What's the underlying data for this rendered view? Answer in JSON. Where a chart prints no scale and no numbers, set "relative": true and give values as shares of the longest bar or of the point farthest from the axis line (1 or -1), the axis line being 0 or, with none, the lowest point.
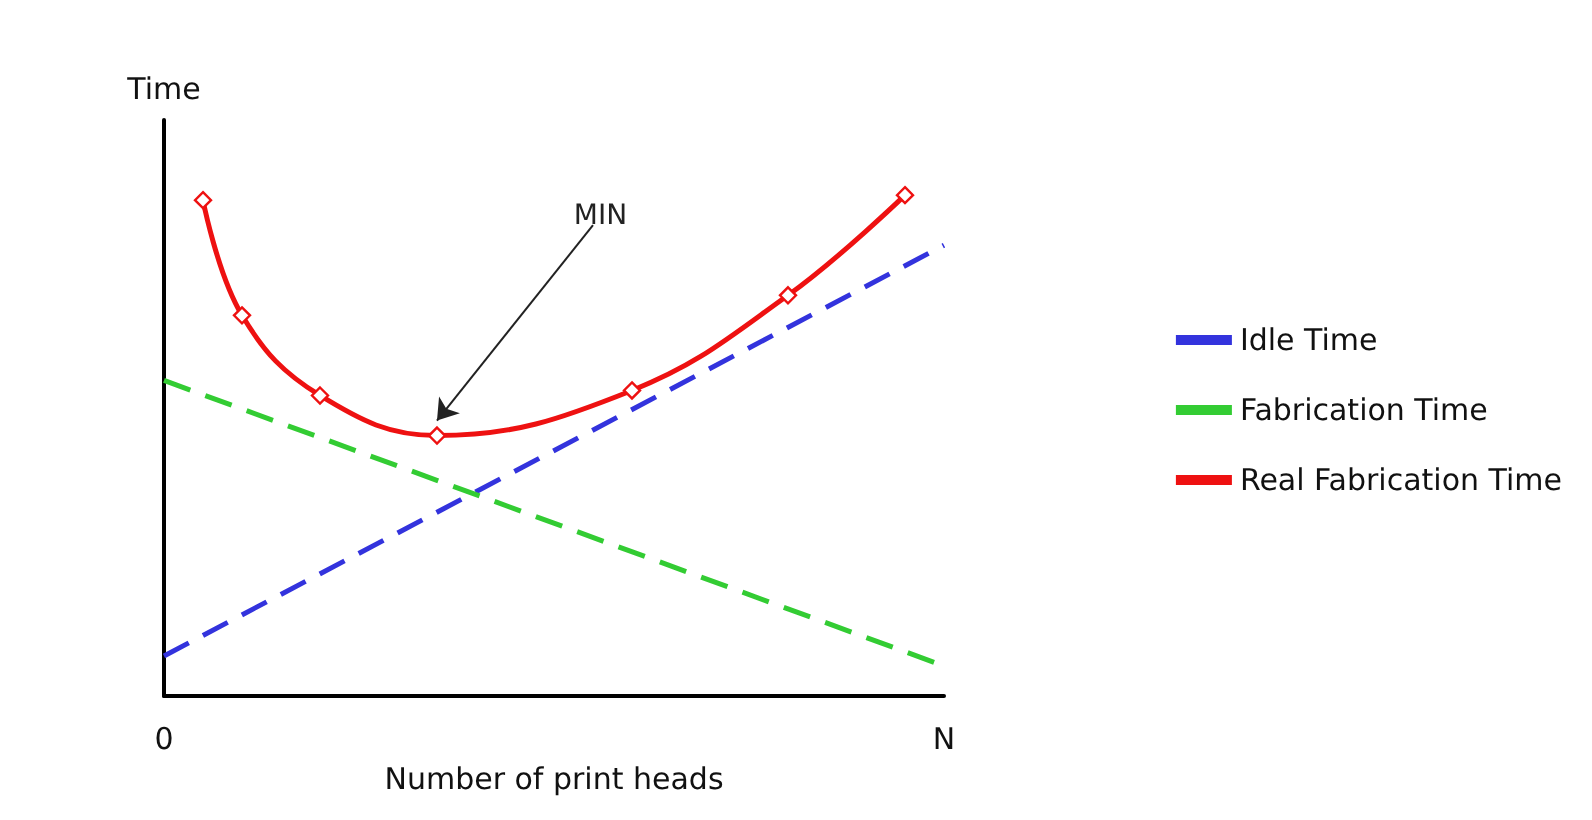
{
  "chart_data": {
    "type": "line",
    "relative": true,
    "xlabel": "Number of print heads",
    "ylabel": "Time",
    "categories": [
      "0",
      null,
      null,
      null,
      null,
      null,
      null,
      null,
      null,
      null,
      null,
      null,
      null,
      null,
      null,
      null,
      null,
      null,
      null,
      null,
      "N"
    ],
    "tick_labels": "x",
    "grid": false,
    "legend": "right",
    "annotations": [
      "MIN"
    ],
    "series": [
      {
        "name": "Idle Time",
        "color": "#3333dd",
        "line_style": "dashed",
        "marker": "none",
        "values": [
          0.08,
          null,
          null,
          null,
          null,
          null,
          null,
          null,
          null,
          null,
          null,
          null,
          null,
          null,
          null,
          null,
          null,
          null,
          null,
          null,
          0.9
        ]
      },
      {
        "name": "Fabrication Time",
        "color": "#33cc33",
        "line_style": "dashed",
        "marker": "none",
        "values": [
          0.63,
          null,
          null,
          null,
          null,
          null,
          null,
          null,
          null,
          null,
          null,
          null,
          null,
          null,
          null,
          null,
          null,
          null,
          null,
          null,
          0.06
        ]
      },
      {
        "name": "Real Fabrication Time",
        "color": "#ee1111",
        "line_style": "solid",
        "marker": "diamond",
        "values": [
          null,
          0.99,
          0.76,
          null,
          0.6,
          null,
          null,
          0.52,
          null,
          null,
          null,
          null,
          0.61,
          null,
          null,
          null,
          0.8,
          null,
          null,
          1.0,
          null
        ]
      }
    ]
  }
}
